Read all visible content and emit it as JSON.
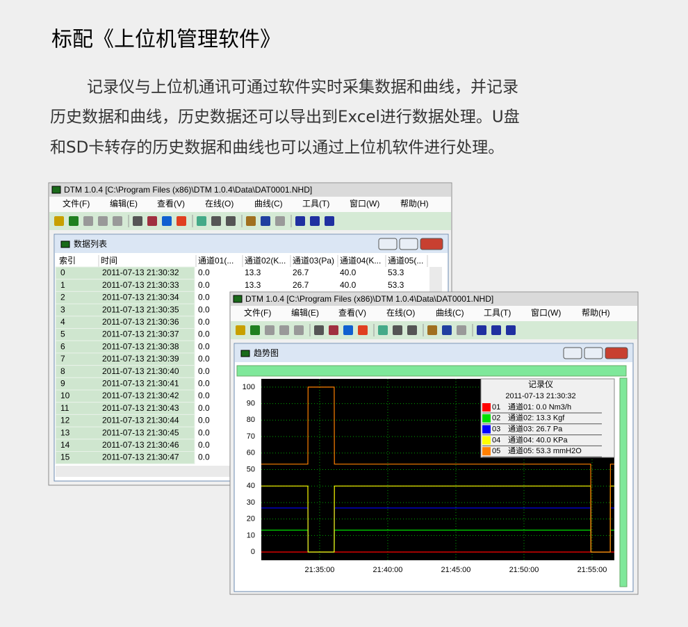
{
  "heading": "标配《上位机管理软件》",
  "paragraph": [
    "记录仪与上位机通讯可通过软件实时采集数据和曲线，并记录",
    "历史数据和曲线，历史数据还可以导出到Excel进行数据处理。U盘",
    "和SD卡转存的历史数据和曲线也可以通过上位机软件进行处理。"
  ],
  "app_title": "DTM 1.0.4 [C:\\Program Files (x86)\\DTM 1.0.4\\Data\\DAT0001.NHD]",
  "menu": [
    "文件(F)",
    "编辑(E)",
    "查看(V)",
    "在线(O)",
    "曲线(C)",
    "工具(T)",
    "窗口(W)",
    "帮助(H)"
  ],
  "table_window": {
    "title": "数据列表",
    "columns": [
      "索引",
      "时间",
      "通道01(...",
      "通道02(K...",
      "通道03(Pa)",
      "通道04(K...",
      "通道05(..."
    ],
    "rows": [
      [
        "0",
        "2011-07-13 21:30:32",
        "0.0",
        "13.3",
        "26.7",
        "40.0",
        "53.3"
      ],
      [
        "1",
        "2011-07-13 21:30:33",
        "0.0",
        "13.3",
        "26.7",
        "40.0",
        "53.3"
      ],
      [
        "2",
        "2011-07-13 21:30:34",
        "0.0"
      ],
      [
        "3",
        "2011-07-13 21:30:35",
        "0.0"
      ],
      [
        "4",
        "2011-07-13 21:30:36",
        "0.0"
      ],
      [
        "5",
        "2011-07-13 21:30:37",
        "0.0"
      ],
      [
        "6",
        "2011-07-13 21:30:38",
        "0.0"
      ],
      [
        "7",
        "2011-07-13 21:30:39",
        "0.0"
      ],
      [
        "8",
        "2011-07-13 21:30:40",
        "0.0"
      ],
      [
        "9",
        "2011-07-13 21:30:41",
        "0.0"
      ],
      [
        "10",
        "2011-07-13 21:30:42",
        "0.0"
      ],
      [
        "11",
        "2011-07-13 21:30:43",
        "0.0"
      ],
      [
        "12",
        "2011-07-13 21:30:44",
        "0.0"
      ],
      [
        "13",
        "2011-07-13 21:30:45",
        "0.0"
      ],
      [
        "14",
        "2011-07-13 21:30:46",
        "0.0"
      ],
      [
        "15",
        "2011-07-13 21:30:47",
        "0.0"
      ]
    ]
  },
  "trend_window": {
    "title": "趋势图",
    "chart_data": {
      "type": "line",
      "ylim": [
        -5,
        105
      ],
      "yticks": [
        0,
        10,
        20,
        30,
        40,
        50,
        60,
        70,
        80,
        90,
        100
      ],
      "xlim": [
        "21:30:43",
        "21:56:38"
      ],
      "xticks": [
        "21:35:00",
        "21:40:00",
        "21:45:00",
        "21:50:00",
        "21:55:00"
      ],
      "grid": true,
      "x": [
        "21:30:43",
        "21:34:08",
        "21:34:09",
        "21:36:04",
        "21:36:05",
        "21:54:54",
        "21:54:55",
        "21:56:20",
        "21:56:21",
        "21:56:38"
      ],
      "legend": {
        "title": "记录仪",
        "time": "2011-07-13 21:30:32"
      },
      "series": [
        {
          "code": "01",
          "name": "通道01: 0.0 Nm3/h",
          "color": "#ff0000",
          "label_color": "#e00000",
          "values": [
            0,
            0,
            0,
            0,
            0,
            0,
            0,
            0,
            0,
            0
          ]
        },
        {
          "code": "02",
          "name": "通道02: 13.3 Kgf",
          "color": "#00e000",
          "label_color": "#e00000",
          "values": [
            13.3,
            13.3,
            0,
            0,
            13.3,
            13.3,
            0,
            0,
            13.3,
            13.3
          ]
        },
        {
          "code": "03",
          "name": "通道03: 26.7 Pa",
          "color": "#0000ff",
          "label_color": "#000000",
          "values": [
            26.7,
            26.7,
            0,
            0,
            26.7,
            26.7,
            0,
            0,
            26.7,
            26.7
          ]
        },
        {
          "code": "04",
          "name": "通道04: 40.0 KPa",
          "color": "#ffff00",
          "label_color": "#000000",
          "values": [
            40,
            40,
            0,
            0,
            40,
            40,
            0,
            0,
            40,
            40
          ]
        },
        {
          "code": "05",
          "name": "通道05: 53.3 mmH2O",
          "color": "#ff8000",
          "label_color": "#000000",
          "values": [
            53.3,
            53.3,
            100,
            100,
            53.3,
            53.3,
            0,
            0,
            53.3,
            53.3
          ]
        }
      ]
    }
  }
}
